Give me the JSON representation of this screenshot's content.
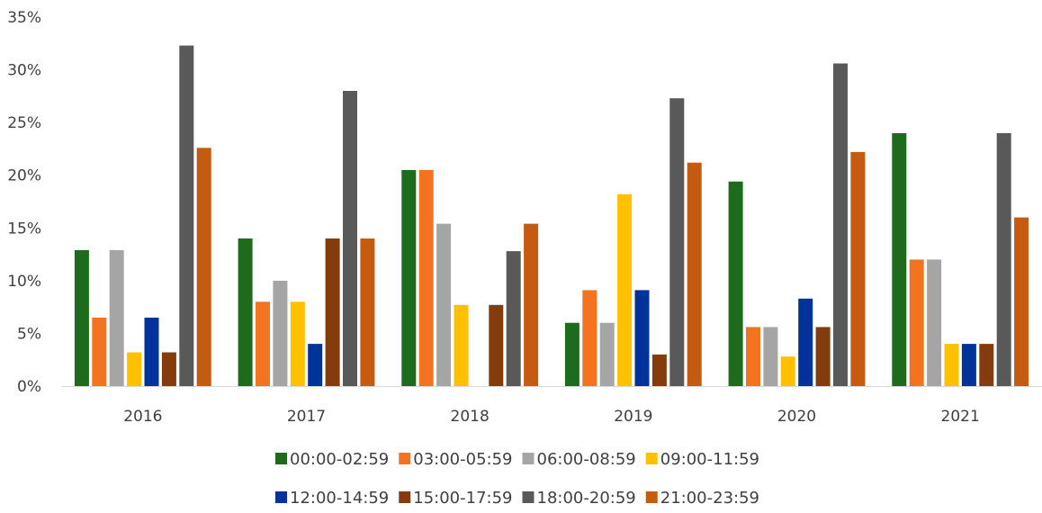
{
  "chart_data": {
    "type": "bar",
    "categories": [
      "2016",
      "2017",
      "2018",
      "2019",
      "2020",
      "2021"
    ],
    "ylim": [
      0,
      35
    ],
    "y_ticks": [
      0,
      5,
      10,
      15,
      20,
      25,
      30,
      35
    ],
    "y_tick_labels": [
      "0%",
      "5%",
      "10%",
      "15%",
      "20%",
      "25%",
      "30%",
      "35%"
    ],
    "grid": false,
    "legend_position": "bottom",
    "series": [
      {
        "name": "00:00-02:59",
        "color": "#1e6b1e",
        "values": [
          12.9,
          14.0,
          20.5,
          6.0,
          19.4,
          24.0
        ]
      },
      {
        "name": "03:00-05:59",
        "color": "#f47321",
        "values": [
          6.5,
          8.0,
          20.5,
          9.1,
          5.6,
          12.0
        ]
      },
      {
        "name": "06:00-08:59",
        "color": "#a5a5a5",
        "values": [
          12.9,
          10.0,
          15.4,
          6.0,
          5.6,
          12.0
        ]
      },
      {
        "name": "09:00-11:59",
        "color": "#ffc000",
        "values": [
          3.2,
          8.0,
          7.7,
          18.2,
          2.8,
          4.0
        ]
      },
      {
        "name": "12:00-14:59",
        "color": "#003399",
        "values": [
          6.5,
          4.0,
          0,
          9.1,
          8.3,
          4.0
        ]
      },
      {
        "name": "15:00-17:59",
        "color": "#843c0c",
        "values": [
          3.2,
          14.0,
          7.7,
          3.0,
          5.6,
          4.0
        ]
      },
      {
        "name": "18:00-20:59",
        "color": "#595959",
        "values": [
          32.3,
          28.0,
          12.8,
          27.3,
          30.6,
          24.0
        ]
      },
      {
        "name": "21:00-23:59",
        "color": "#c55a11",
        "values": [
          22.6,
          14.0,
          15.4,
          21.2,
          22.2,
          16.0
        ]
      }
    ]
  }
}
